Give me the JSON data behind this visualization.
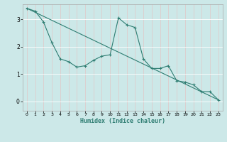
{
  "line1_x": [
    0,
    1,
    2,
    3,
    4,
    5,
    6,
    7,
    8,
    9,
    10,
    11,
    12,
    13,
    14,
    15,
    16,
    17,
    18,
    19,
    20,
    21,
    22,
    23
  ],
  "line1_y": [
    3.4,
    3.3,
    2.9,
    2.15,
    1.55,
    1.45,
    1.25,
    1.3,
    1.5,
    1.65,
    1.7,
    3.05,
    2.8,
    2.7,
    1.55,
    1.2,
    1.2,
    1.3,
    0.75,
    0.7,
    0.6,
    0.35,
    0.35,
    0.05
  ],
  "line2_x": [
    0,
    23
  ],
  "line2_y": [
    3.4,
    0.05
  ],
  "color": "#2e7d72",
  "bg_color": "#cce8e8",
  "grid_color": "#e8e8e8",
  "xlabel": "Humidex (Indice chaleur)",
  "yticks": [
    0,
    1,
    2,
    3
  ],
  "xticks": [
    0,
    1,
    2,
    3,
    4,
    5,
    6,
    7,
    8,
    9,
    10,
    11,
    12,
    13,
    14,
    15,
    16,
    17,
    18,
    19,
    20,
    21,
    22,
    23
  ],
  "xlim": [
    -0.5,
    23.5
  ],
  "ylim": [
    -0.35,
    3.55
  ],
  "marker": "+",
  "markersize": 3.5,
  "linewidth": 0.8
}
